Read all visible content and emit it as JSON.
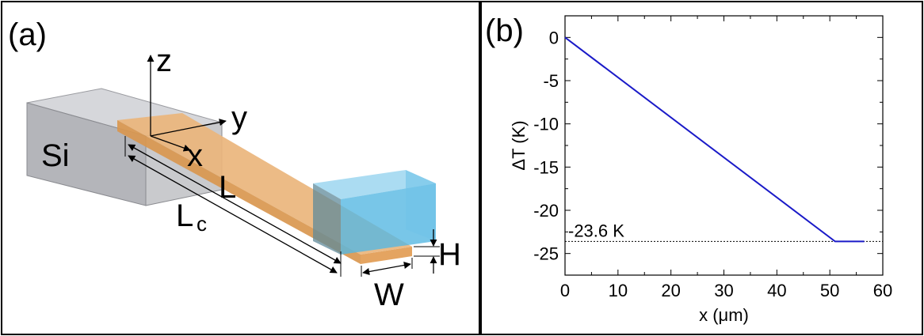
{
  "panel_a": {
    "label": "(a)",
    "axis_labels": {
      "z": "z",
      "y": "y",
      "x": "x"
    },
    "block_label": "Si",
    "dim_L": "L",
    "dim_Lc_main": "L",
    "dim_Lc_sub": "c",
    "dim_W": "W",
    "dim_H": "H",
    "colors": {
      "si": "#c4c5c9",
      "beam": "#e8a868",
      "heatsink": "#5bb9e0"
    }
  },
  "panel_b": {
    "label": "(b)",
    "annotation": "-23.6 K"
  },
  "chart_data": {
    "type": "line",
    "title": "",
    "xlabel": "x (μm)",
    "ylabel": "ΔT (K)",
    "xlim": [
      0,
      60
    ],
    "ylim": [
      -27.5,
      2.5
    ],
    "xticks": [
      0,
      10,
      20,
      30,
      40,
      50,
      60
    ],
    "yticks": [
      0,
      -5,
      -10,
      -15,
      -20,
      -25
    ],
    "grid": false,
    "series": [
      {
        "color": "#1a1ac8",
        "x": [
          0,
          51,
          56.5
        ],
        "y": [
          0,
          -23.6,
          -23.6
        ]
      }
    ],
    "reference_line": {
      "y": -23.6,
      "style": "dotted"
    }
  }
}
